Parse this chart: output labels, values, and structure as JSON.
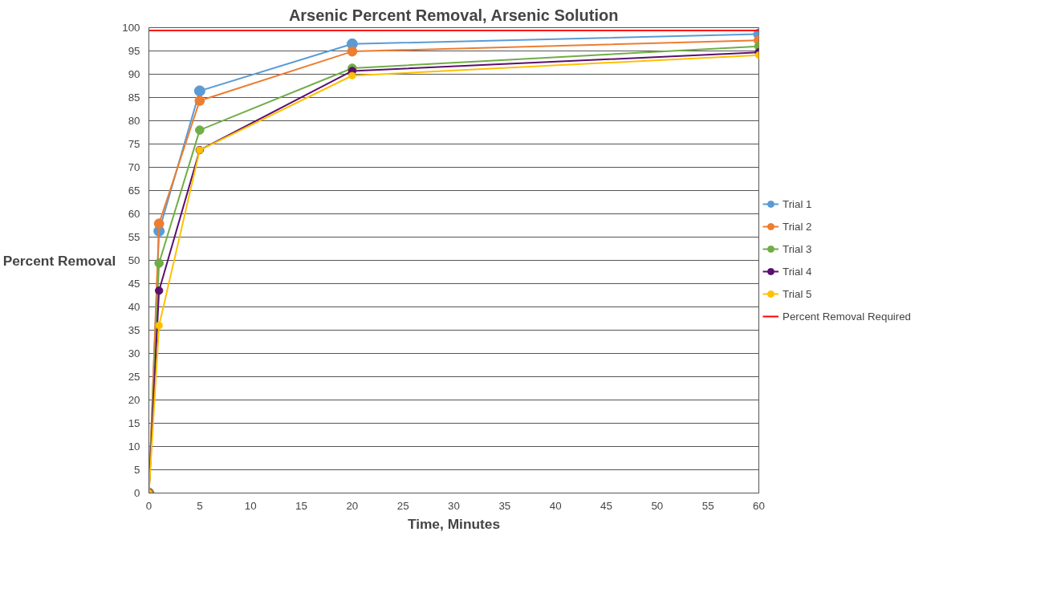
{
  "chart_data": {
    "type": "line",
    "title": "Arsenic Percent Removal, Arsenic Solution",
    "xlabel": "Time, Minutes",
    "ylabel": "Percent Removal",
    "x": [
      0,
      1,
      5,
      20,
      60
    ],
    "series": [
      {
        "name": "Trial 1",
        "color": "#5b9bd5",
        "values": [
          0,
          56.3,
          86.4,
          96.5,
          98.6
        ]
      },
      {
        "name": "Trial 2",
        "color": "#ed7d31",
        "values": [
          0,
          57.9,
          84.3,
          94.9,
          97.3
        ]
      },
      {
        "name": "Trial 3",
        "color": "#70ad47",
        "values": [
          0,
          49.4,
          78.0,
          91.3,
          96.0
        ]
      },
      {
        "name": "Trial 4",
        "color": "#5b0f6e",
        "values": [
          0,
          43.5,
          73.7,
          90.7,
          94.7
        ]
      },
      {
        "name": "Trial 5",
        "color": "#ffc000",
        "values": [
          0,
          36.0,
          73.7,
          89.7,
          94.1
        ]
      },
      {
        "name": "Percent Removal Required",
        "color": "#ff0000",
        "x": [
          0,
          60
        ],
        "values": [
          99.4,
          99.4
        ],
        "marker": "none"
      }
    ],
    "xlim": [
      0,
      60
    ],
    "xticks": [
      0,
      5,
      10,
      15,
      20,
      25,
      30,
      35,
      40,
      45,
      50,
      55,
      60
    ],
    "ylim": [
      0,
      100
    ],
    "yticks": [
      0,
      5,
      10,
      15,
      20,
      25,
      30,
      35,
      40,
      45,
      50,
      55,
      60,
      65,
      70,
      75,
      80,
      85,
      90,
      95,
      100
    ],
    "grid": "y",
    "legend": "right",
    "marker": "circle",
    "line_style": "solid"
  }
}
